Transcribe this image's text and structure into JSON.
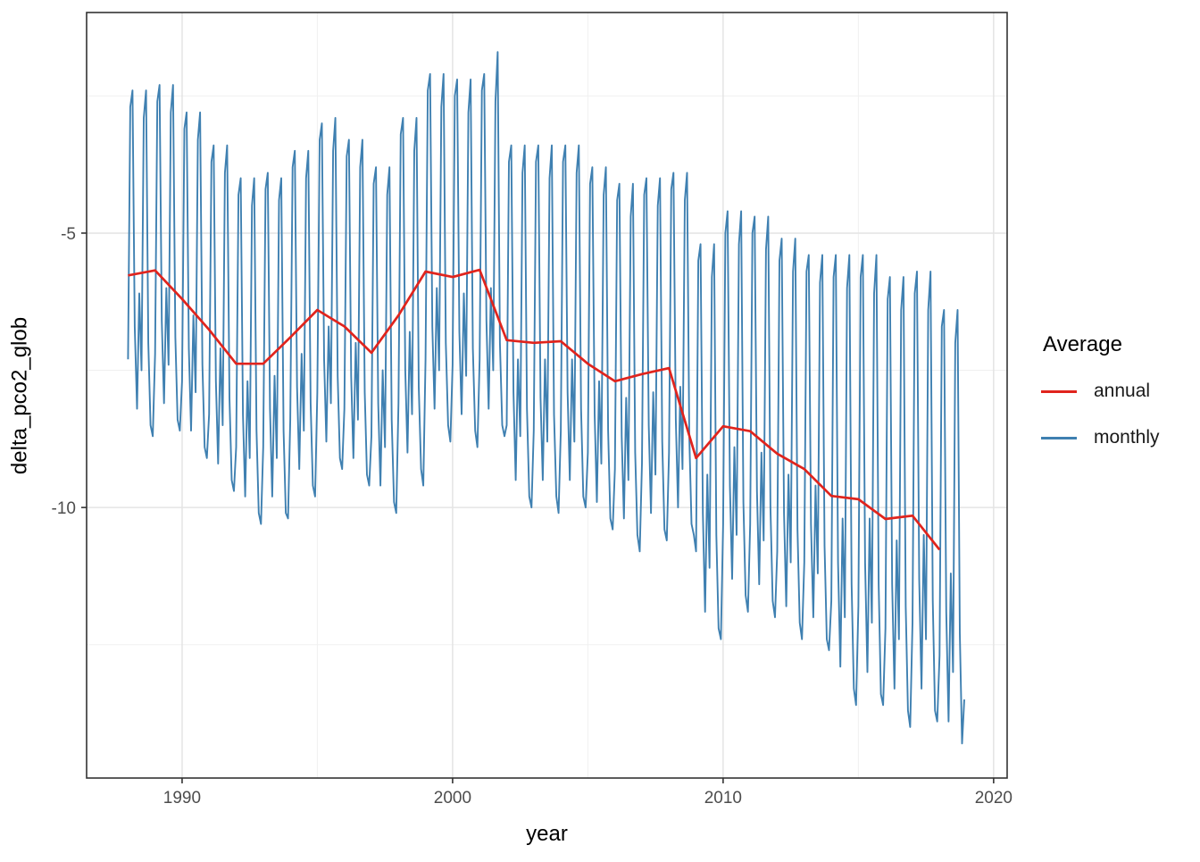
{
  "chart_data": {
    "type": "line",
    "title": "",
    "xlabel": "year",
    "ylabel": "delta_pco2_glob",
    "xlim": [
      1986.47,
      2020.5
    ],
    "ylim": [
      -14.93,
      -0.98
    ],
    "x_ticks": {
      "values": [
        1990,
        2000,
        2010,
        2020
      ],
      "labels": [
        "1990",
        "2000",
        "2010",
        "2020"
      ]
    },
    "y_ticks": {
      "values": [
        -5,
        -10
      ],
      "labels": [
        "-5",
        "-10"
      ]
    },
    "x_minor_ticks": [
      1995,
      2005,
      2015
    ],
    "y_minor_ticks": [
      -2.5,
      -7.5,
      -12.5
    ],
    "grid": "major+minor",
    "legend": {
      "title": "Average",
      "position": "right",
      "entries": [
        {
          "label": "annual",
          "color": "#e0241d"
        },
        {
          "label": "monthly",
          "color": "#3f80b1"
        }
      ]
    },
    "series": [
      {
        "name": "monthly",
        "color": "#3f80b1",
        "x_start": 1988.0,
        "x_step": 0.0833333,
        "values": [
          -7.3,
          -2.7,
          -2.4,
          -6.7,
          -8.2,
          -6.1,
          -7.5,
          -2.9,
          -2.4,
          -7.0,
          -8.5,
          -8.7,
          -7.2,
          -2.6,
          -2.3,
          -6.6,
          -8.1,
          -6.0,
          -7.4,
          -2.8,
          -2.3,
          -6.9,
          -8.4,
          -8.6,
          -7.7,
          -3.1,
          -2.8,
          -7.1,
          -8.6,
          -6.5,
          -7.9,
          -3.3,
          -2.8,
          -7.4,
          -8.9,
          -9.1,
          -8.3,
          -3.7,
          -3.4,
          -7.7,
          -9.2,
          -7.1,
          -8.5,
          -3.9,
          -3.4,
          -8.0,
          -9.5,
          -9.7,
          -8.9,
          -4.3,
          -4.0,
          -8.3,
          -9.8,
          -7.7,
          -9.1,
          -4.5,
          -4.0,
          -8.6,
          -10.1,
          -10.3,
          -8.9,
          -4.2,
          -3.9,
          -8.2,
          -9.8,
          -7.6,
          -9.1,
          -4.4,
          -4.0,
          -8.6,
          -10.1,
          -10.2,
          -8.4,
          -3.8,
          -3.5,
          -7.8,
          -9.3,
          -7.2,
          -8.6,
          -4.0,
          -3.5,
          -8.1,
          -9.6,
          -9.8,
          -7.9,
          -3.3,
          -3.0,
          -7.3,
          -8.8,
          -6.7,
          -8.1,
          -3.5,
          -2.9,
          -7.6,
          -9.1,
          -9.3,
          -8.2,
          -3.6,
          -3.3,
          -7.6,
          -9.1,
          -7.0,
          -8.4,
          -3.8,
          -3.3,
          -7.9,
          -9.4,
          -9.6,
          -8.7,
          -4.1,
          -3.8,
          -8.1,
          -9.6,
          -7.5,
          -8.9,
          -4.3,
          -3.8,
          -8.4,
          -9.9,
          -10.1,
          -8.1,
          -3.2,
          -2.9,
          -7.5,
          -9.0,
          -6.8,
          -8.3,
          -3.5,
          -2.9,
          -7.8,
          -9.3,
          -9.6,
          -7.3,
          -2.4,
          -2.1,
          -6.7,
          -8.2,
          -6.0,
          -7.5,
          -2.7,
          -2.1,
          -7.0,
          -8.5,
          -8.8,
          -7.4,
          -2.5,
          -2.2,
          -6.8,
          -8.3,
          -6.1,
          -7.6,
          -2.8,
          -2.2,
          -7.1,
          -8.6,
          -8.9,
          -7.3,
          -2.4,
          -2.1,
          -6.6,
          -8.2,
          -6.0,
          -7.5,
          -2.6,
          -1.7,
          -7.0,
          -8.5,
          -8.7,
          -8.5,
          -3.7,
          -3.4,
          -7.9,
          -9.5,
          -7.3,
          -8.7,
          -3.9,
          -3.4,
          -8.2,
          -9.8,
          -10.0,
          -8.6,
          -3.7,
          -3.4,
          -8.0,
          -9.5,
          -7.3,
          -8.8,
          -4.0,
          -3.4,
          -8.3,
          -9.8,
          -10.1,
          -8.6,
          -3.7,
          -3.4,
          -7.9,
          -9.5,
          -7.3,
          -8.8,
          -3.9,
          -3.4,
          -8.2,
          -9.8,
          -10.0,
          -9.0,
          -4.1,
          -3.8,
          -8.3,
          -9.9,
          -7.7,
          -9.2,
          -4.3,
          -3.8,
          -8.6,
          -10.2,
          -10.4,
          -9.3,
          -4.4,
          -4.1,
          -8.7,
          -10.2,
          -8.0,
          -9.5,
          -4.7,
          -4.1,
          -9.0,
          -10.5,
          -10.8,
          -9.2,
          -4.3,
          -4.0,
          -8.5,
          -10.1,
          -7.9,
          -9.4,
          -4.5,
          -4.0,
          -8.8,
          -10.4,
          -10.6,
          -9.0,
          -4.2,
          -3.9,
          -8.4,
          -10.0,
          -7.8,
          -9.3,
          -4.4,
          -3.9,
          -8.7,
          -10.3,
          -10.5,
          -10.8,
          -5.5,
          -5.2,
          -10.1,
          -11.9,
          -9.4,
          -11.1,
          -5.8,
          -5.2,
          -10.5,
          -12.2,
          -12.4,
          -10.3,
          -5.0,
          -4.6,
          -9.6,
          -11.3,
          -8.9,
          -10.5,
          -5.2,
          -4.6,
          -9.9,
          -11.6,
          -11.9,
          -10.3,
          -5.0,
          -4.7,
          -9.7,
          -11.4,
          -9.0,
          -10.6,
          -5.3,
          -4.7,
          -10.0,
          -11.7,
          -12.0,
          -10.8,
          -5.5,
          -5.1,
          -10.1,
          -11.8,
          -9.4,
          -11.0,
          -5.7,
          -5.1,
          -10.4,
          -12.1,
          -12.4,
          -11.0,
          -5.7,
          -5.4,
          -10.3,
          -12.0,
          -9.6,
          -11.2,
          -5.9,
          -5.4,
          -10.7,
          -12.4,
          -12.6,
          -11.7,
          -5.8,
          -5.4,
          -11.0,
          -12.9,
          -10.2,
          -12.0,
          -6.0,
          -5.4,
          -11.4,
          -13.3,
          -13.6,
          -11.8,
          -5.8,
          -5.4,
          -11.0,
          -13.0,
          -10.2,
          -12.1,
          -6.1,
          -5.4,
          -11.4,
          -13.4,
          -13.6,
          -12.2,
          -6.2,
          -5.8,
          -11.4,
          -13.3,
          -10.6,
          -12.4,
          -6.4,
          -5.8,
          -11.8,
          -13.7,
          -14.0,
          -12.1,
          -6.1,
          -5.7,
          -11.3,
          -13.3,
          -10.5,
          -12.4,
          -6.4,
          -5.7,
          -11.7,
          -13.7,
          -13.9,
          -12.7,
          -6.7,
          -6.4,
          -11.9,
          -13.9,
          -11.2,
          -13.0,
          -7.0,
          -6.4,
          -12.3,
          -14.3,
          -13.5
        ]
      },
      {
        "name": "annual",
        "color": "#e0241d",
        "x_start": 1988,
        "x_step": 1,
        "values": [
          -5.77,
          -5.68,
          -6.2,
          -6.76,
          -7.38,
          -7.38,
          -6.9,
          -6.4,
          -6.7,
          -7.18,
          -6.5,
          -5.7,
          -5.8,
          -5.67,
          -6.95,
          -7.0,
          -6.97,
          -7.38,
          -7.7,
          -7.57,
          -7.46,
          -9.1,
          -8.52,
          -8.61,
          -9.02,
          -9.3,
          -9.79,
          -9.85,
          -10.21,
          -10.15,
          -10.77
        ]
      }
    ]
  }
}
